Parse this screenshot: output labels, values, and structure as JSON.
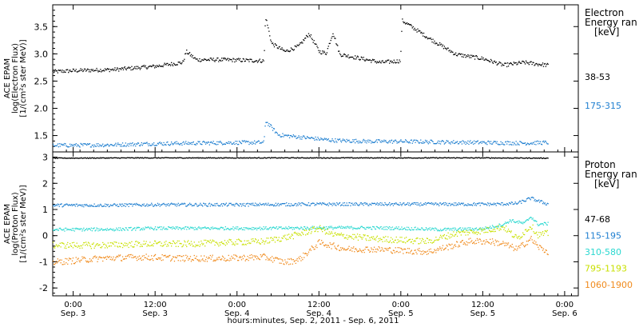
{
  "x_axis": {
    "title": "hours:minutes, Sep.  2, 2011 - Sep.  6, 2011",
    "ticks": [
      {
        "x": 0,
        "time": "0:00",
        "date": "Sep. 3"
      },
      {
        "x": 12,
        "time": "12:00",
        "date": "Sep. 3"
      },
      {
        "x": 24,
        "time": "0:00",
        "date": "Sep. 4"
      },
      {
        "x": 36,
        "time": "12:00",
        "date": "Sep. 4"
      },
      {
        "x": 48,
        "time": "0:00",
        "date": "Sep. 5"
      },
      {
        "x": 60,
        "time": "12:00",
        "date": "Sep. 5"
      },
      {
        "x": 72,
        "time": "0:00",
        "date": "Sep. 6"
      }
    ]
  },
  "chart_data": [
    {
      "type": "scatter",
      "panel": "electron",
      "ylabel_lines": [
        "ACE EPAM",
        "log(Electron Flux)",
        "[1/(cm²s ster MeV)]"
      ],
      "ylim": [
        1.2,
        3.9
      ],
      "yticks": [
        1.5,
        2.0,
        2.5,
        3.0,
        3.5
      ],
      "xlim": [
        -3,
        74
      ],
      "legend_title": [
        "Electron",
        "Energy ran",
        "[keV]"
      ],
      "series": [
        {
          "name": "38-53",
          "color": "#000000",
          "x": [
            -3,
            0,
            6,
            12,
            16,
            16.5,
            18,
            22,
            27.9,
            28.1,
            29,
            31,
            33,
            34.5,
            36,
            37,
            38,
            39,
            41,
            45,
            47.9,
            48.1,
            49,
            52,
            56,
            60,
            63,
            66,
            68,
            69.5
          ],
          "y": [
            2.68,
            2.7,
            2.72,
            2.78,
            2.85,
            3.05,
            2.9,
            2.9,
            2.88,
            3.7,
            3.2,
            3.05,
            3.15,
            3.38,
            3.05,
            3.02,
            3.4,
            3.0,
            2.95,
            2.85,
            2.88,
            3.62,
            3.55,
            3.3,
            3.0,
            2.92,
            2.8,
            2.85,
            2.82,
            2.8
          ]
        },
        {
          "name": "175-315",
          "color": "#1f7fd0",
          "x": [
            -3,
            0,
            6,
            12,
            18,
            24,
            27.9,
            28.1,
            30,
            34,
            38,
            44,
            48,
            54,
            60,
            66,
            69.5
          ],
          "y": [
            1.33,
            1.33,
            1.34,
            1.36,
            1.37,
            1.38,
            1.38,
            1.78,
            1.52,
            1.47,
            1.42,
            1.4,
            1.4,
            1.39,
            1.38,
            1.37,
            1.38
          ]
        }
      ]
    },
    {
      "type": "scatter",
      "panel": "proton",
      "ylabel_lines": [
        "ACE EPAM",
        "log(Proton Flux)",
        "[1/(cm²s ster MeV)]"
      ],
      "ylim": [
        -2.3,
        3.2
      ],
      "yticks": [
        -2,
        -1,
        0,
        1,
        2,
        3
      ],
      "xlim": [
        -3,
        74
      ],
      "legend_title": [
        "Proton",
        "Energy ran",
        "[keV]"
      ],
      "series": [
        {
          "name": "47-68",
          "color": "#000000",
          "x": [
            -3,
            10,
            24,
            36,
            48,
            60,
            69.5
          ],
          "y": [
            2.98,
            2.99,
            2.99,
            2.99,
            2.99,
            2.99,
            2.98
          ]
        },
        {
          "name": "115-195",
          "color": "#1f7fd0",
          "x": [
            -3,
            6,
            12,
            24,
            36,
            48,
            56,
            62,
            65,
            67,
            68,
            69.5
          ],
          "y": [
            1.18,
            1.18,
            1.2,
            1.2,
            1.22,
            1.22,
            1.22,
            1.22,
            1.25,
            1.45,
            1.35,
            1.22
          ]
        },
        {
          "name": "310-580",
          "color": "#2ad8d0",
          "x": [
            -3,
            6,
            12,
            18,
            24,
            30,
            36,
            42,
            48,
            54,
            60,
            63,
            64,
            66,
            67,
            68,
            69.5
          ],
          "y": [
            0.25,
            0.26,
            0.3,
            0.3,
            0.3,
            0.3,
            0.32,
            0.32,
            0.3,
            0.25,
            0.28,
            0.45,
            0.6,
            0.48,
            0.75,
            0.45,
            0.48
          ]
        },
        {
          "name": "795-1193",
          "color": "#c8e000",
          "x": [
            -3,
            4,
            10,
            16,
            22,
            28,
            32,
            36,
            38,
            44,
            48,
            52,
            56,
            60,
            63,
            65,
            67,
            68,
            69.5
          ],
          "y": [
            -0.35,
            -0.35,
            -0.3,
            -0.3,
            -0.25,
            -0.2,
            0.0,
            0.3,
            0.05,
            -0.1,
            -0.15,
            -0.2,
            0.1,
            0.2,
            0.35,
            -0.1,
            0.4,
            0.05,
            0.1
          ]
        },
        {
          "name": "1060-1900",
          "color": "#f08a1c",
          "x": [
            -3,
            4,
            10,
            16,
            22,
            28,
            31,
            33,
            36,
            40,
            44,
            48,
            52,
            55,
            58,
            61,
            63,
            65,
            67,
            68,
            69.5
          ],
          "y": [
            -1.0,
            -0.85,
            -0.8,
            -0.85,
            -0.85,
            -0.8,
            -1.0,
            -0.9,
            -0.25,
            -0.5,
            -0.5,
            -0.55,
            -0.6,
            -0.4,
            -0.2,
            -0.2,
            -0.3,
            -0.5,
            -0.1,
            -0.4,
            -0.6
          ]
        }
      ]
    }
  ]
}
